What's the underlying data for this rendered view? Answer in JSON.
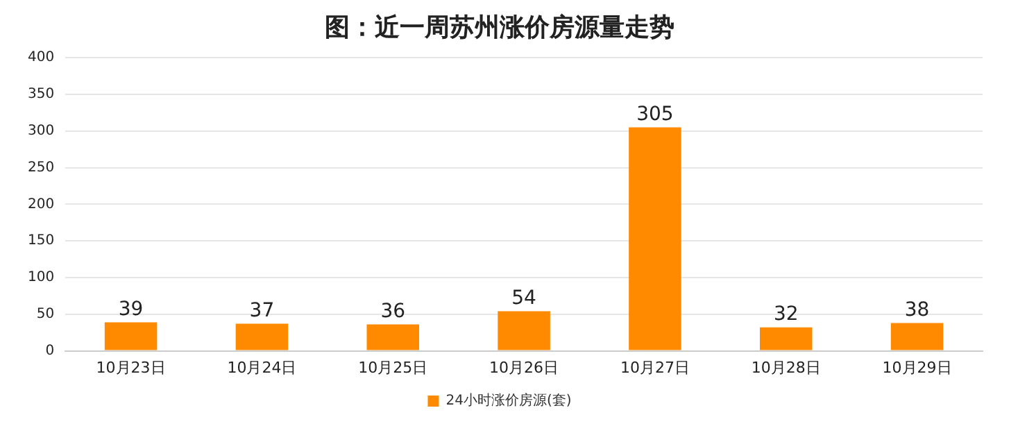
{
  "chart_data": {
    "type": "bar",
    "title": "图：近一周苏州涨价房源量走势",
    "categories": [
      "10月23日",
      "10月24日",
      "10月25日",
      "10月26日",
      "10月27日",
      "10月28日",
      "10月29日"
    ],
    "series": [
      {
        "name": "24小时涨价房源(套)",
        "color": "#ff8a00",
        "values": [
          39,
          37,
          36,
          54,
          305,
          32,
          38
        ]
      }
    ],
    "ylim": [
      0,
      400
    ],
    "yticks": [
      0,
      50,
      100,
      150,
      200,
      250,
      300,
      350,
      400
    ],
    "grid": "y",
    "legend": "bottom",
    "data_labels": true
  }
}
